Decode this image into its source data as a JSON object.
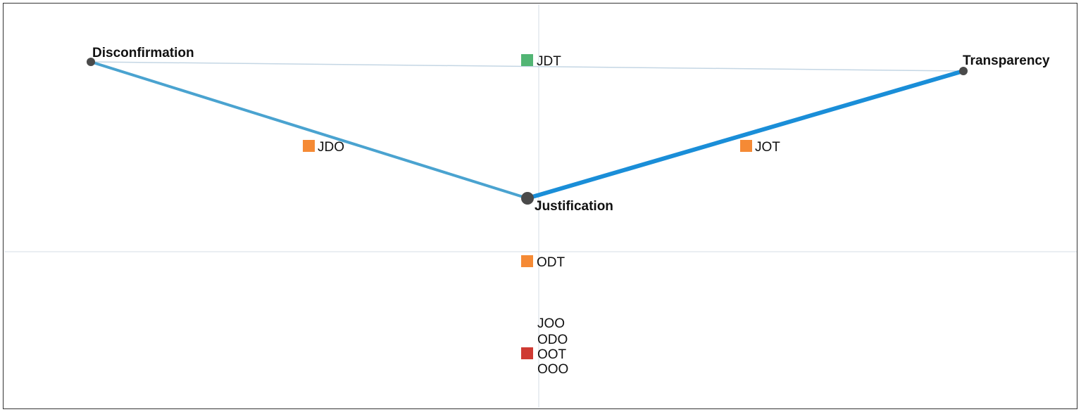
{
  "colors": {
    "axis": "#d5dde5",
    "edge_weak": "#c4d6e4",
    "edge_mid": "#4aa3d0",
    "edge_strong": "#1a8ed8",
    "node": "#4a4a4a",
    "green": "#52b574",
    "orange": "#f58a35",
    "red": "#cf3a33"
  },
  "nodes": [
    {
      "id": "disconfirmation",
      "label": "Disconfirmation"
    },
    {
      "id": "transparency",
      "label": "Transparency"
    },
    {
      "id": "justification",
      "label": "Justification"
    }
  ],
  "edges": [
    {
      "from": "disconfirmation",
      "to": "transparency",
      "strength": "weak"
    },
    {
      "from": "disconfirmation",
      "to": "justification",
      "strength": "mid"
    },
    {
      "from": "justification",
      "to": "transparency",
      "strength": "strong"
    }
  ],
  "configurations": [
    {
      "id": "jdt",
      "label": "JDT",
      "color": "green"
    },
    {
      "id": "jdo",
      "label": "JDO",
      "color": "orange"
    },
    {
      "id": "jot",
      "label": "JOT",
      "color": "orange"
    },
    {
      "id": "odt",
      "label": "ODT",
      "color": "orange"
    },
    {
      "id": "joo",
      "label": "JOO",
      "color": null
    },
    {
      "id": "odo",
      "label": "ODO",
      "color": null
    },
    {
      "id": "oot",
      "label": "OOT",
      "color": "red"
    },
    {
      "id": "ooo",
      "label": "OOO",
      "color": null
    }
  ]
}
